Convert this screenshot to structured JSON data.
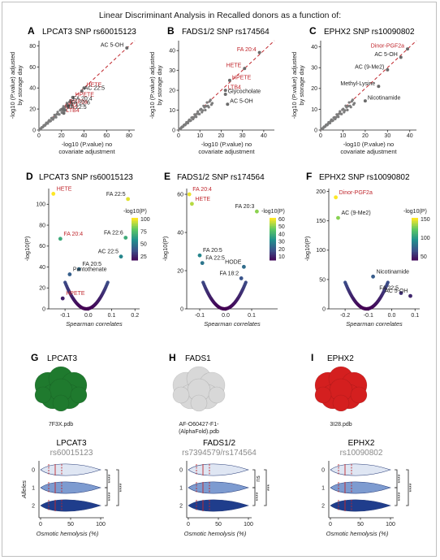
{
  "title": "Linear Discriminant Analysis in Recalled donors as a function of:",
  "colors": {
    "red": "#c0272d",
    "dark": "#222222",
    "diag": "#c0272d"
  },
  "top_panels": [
    {
      "letter": "A",
      "title": "LPCAT3 SNP rs60015123",
      "xlabel": [
        "-log10 (P.value) no",
        "covariate adjustment"
      ],
      "ylabel": [
        "-log10 (P.value) adjusted",
        "by storage day"
      ],
      "ticks": [
        "0",
        "20",
        "40",
        "60",
        "80"
      ],
      "xlim": [
        0,
        85
      ],
      "points": [
        {
          "label": "AC 5-OH",
          "x": 78,
          "y": 78,
          "c": "dark"
        },
        {
          "label": "HETE",
          "x": 40,
          "y": 40,
          "c": "red"
        },
        {
          "label": "AC 22:5",
          "x": 38,
          "y": 37,
          "c": "dark"
        },
        {
          "label": "HPETE",
          "x": 30,
          "y": 31,
          "c": "red"
        },
        {
          "label": "FA 20:4",
          "x": 28,
          "y": 27,
          "c": "dark"
        },
        {
          "label": "PGF2a",
          "x": 25,
          "y": 24,
          "c": "red"
        },
        {
          "label": "FA 22:6",
          "x": 26,
          "y": 23,
          "c": "dark"
        },
        {
          "label": "LTA4",
          "x": 21,
          "y": 20,
          "c": "red"
        },
        {
          "label": "FA 22:5",
          "x": 23,
          "y": 19,
          "c": "dark"
        },
        {
          "label": "LTB4",
          "x": 22,
          "y": 16,
          "c": "red"
        }
      ]
    },
    {
      "letter": "B",
      "title": "FADS1/2 SNP rs174564",
      "xlabel": [
        "-log10 (P.value) no",
        "covariate adjustment"
      ],
      "ylabel": [
        "-log10 (P.value) adjusted",
        "by storage day"
      ],
      "ticks": [
        "0",
        "10",
        "20",
        "30",
        "40"
      ],
      "xlim": [
        0,
        45
      ],
      "points": [
        {
          "label": "FA 20:4",
          "x": 38,
          "y": 39,
          "c": "red"
        },
        {
          "label": "HETE",
          "x": 31,
          "y": 31,
          "c": "red"
        },
        {
          "label": "HPETE",
          "x": 24,
          "y": 25,
          "c": "red"
        },
        {
          "label": "LTB4",
          "x": 22,
          "y": 20,
          "c": "red"
        },
        {
          "label": "Glycocholate",
          "x": 22,
          "y": 18,
          "c": "dark"
        },
        {
          "label": "AC 5-OH",
          "x": 23,
          "y": 13,
          "c": "dark"
        }
      ]
    },
    {
      "letter": "C",
      "title": "EPHX2 SNP rs10090802",
      "xlabel": [
        "-log10 (P.value) no",
        "covariate adjustment"
      ],
      "ylabel": [
        "-log10 (P.value) adjusted",
        "by storage day"
      ],
      "ticks": [
        "0",
        "10",
        "20",
        "30",
        "40"
      ],
      "xlim": [
        0,
        43
      ],
      "points": [
        {
          "label": "Dinor-PGF2a",
          "x": 39,
          "y": 39,
          "c": "red"
        },
        {
          "label": "AC 5-OH",
          "x": 36,
          "y": 35,
          "c": "dark"
        },
        {
          "label": "AC (9-Me2)",
          "x": 30,
          "y": 29,
          "c": "dark"
        },
        {
          "label": "Methyl-Lysine",
          "x": 26,
          "y": 21,
          "c": "dark"
        },
        {
          "label": "Nicotinamide",
          "x": 20,
          "y": 14,
          "c": "dark"
        }
      ]
    }
  ],
  "volcano_panels": [
    {
      "letter": "D",
      "title": "LPCAT3 SNP rs60015123",
      "xlabel": "Spearman correlates",
      "ylabel": "-log10(P)",
      "legend_title": "-log10(P)",
      "legend_ticks": [
        "100",
        "75",
        "50",
        "25"
      ],
      "cmax": 110,
      "xticks": [
        "-0.1",
        "0.0",
        "0.1",
        "0.2"
      ],
      "yticks": [
        "0",
        "20",
        "40",
        "60",
        "80",
        "100"
      ],
      "xlim": [
        -0.17,
        0.22
      ],
      "ylim": [
        0,
        115
      ],
      "points": [
        {
          "label": "HETE",
          "x": -0.15,
          "y": 110,
          "c": "red"
        },
        {
          "label": "FA 22:5",
          "x": 0.17,
          "y": 105,
          "c": "dark"
        },
        {
          "label": "FA 20:4",
          "x": -0.12,
          "y": 67,
          "c": "red"
        },
        {
          "label": "FA 22:6",
          "x": 0.16,
          "y": 68,
          "c": "dark"
        },
        {
          "label": "AC 22:5",
          "x": 0.14,
          "y": 50,
          "c": "dark"
        },
        {
          "label": "FA 20:5",
          "x": -0.04,
          "y": 38,
          "c": "dark"
        },
        {
          "label": "Pantothenate",
          "x": -0.08,
          "y": 33,
          "c": "dark"
        },
        {
          "label": "HPETE",
          "x": -0.11,
          "y": 10,
          "c": "red"
        }
      ]
    },
    {
      "letter": "E",
      "title": "FADS1/2 SNP rs174564",
      "xlabel": "Spearman correlates",
      "ylabel": "-log10(P)",
      "legend_title": "-log10(P)",
      "legend_ticks": [
        "60",
        "50",
        "40",
        "30",
        "20",
        "10"
      ],
      "cmax": 62,
      "xticks": [
        "-0.1",
        "0.0",
        "0.1"
      ],
      "yticks": [
        "0",
        "20",
        "40",
        "60"
      ],
      "xlim": [
        -0.15,
        0.2
      ],
      "ylim": [
        0,
        63
      ],
      "points": [
        {
          "label": "FA 20:4",
          "x": -0.14,
          "y": 60,
          "c": "red"
        },
        {
          "label": "HETE",
          "x": -0.13,
          "y": 55,
          "c": "red"
        },
        {
          "label": "FA 20:3",
          "x": 0.12,
          "y": 51,
          "c": "dark"
        },
        {
          "label": "FA 20:5",
          "x": -0.1,
          "y": 28,
          "c": "dark"
        },
        {
          "label": "FA 22:5",
          "x": -0.09,
          "y": 24,
          "c": "dark"
        },
        {
          "label": "HODE",
          "x": 0.07,
          "y": 22,
          "c": "dark"
        },
        {
          "label": "FA 18:2",
          "x": 0.06,
          "y": 16,
          "c": "dark"
        }
      ]
    },
    {
      "letter": "F",
      "title": "EPHX2 SNP rs10090802",
      "xlabel": "Spearman correlates",
      "ylabel": "-log10(P)",
      "legend_title": "-log10(P)",
      "legend_ticks": [
        "150",
        "100",
        "50"
      ],
      "cmax": 190,
      "xticks": [
        "-0.2",
        "-0.1",
        "0.0",
        "0.1"
      ],
      "yticks": [
        "0",
        "50",
        "100",
        "150",
        "200"
      ],
      "xlim": [
        -0.27,
        0.12
      ],
      "ylim": [
        0,
        205
      ],
      "points": [
        {
          "label": "Dinor-PGF2a",
          "x": -0.24,
          "y": 190,
          "c": "red"
        },
        {
          "label": "AC (9-Me2)",
          "x": -0.23,
          "y": 155,
          "c": "dark"
        },
        {
          "label": "Nicotinamide",
          "x": -0.08,
          "y": 55,
          "c": "dark"
        },
        {
          "label": "FA 22:5",
          "x": 0.04,
          "y": 27,
          "c": "dark"
        },
        {
          "label": "AC 5-OH",
          "x": 0.08,
          "y": 22,
          "c": "dark"
        }
      ]
    }
  ],
  "structures": [
    {
      "letter": "G",
      "name": "LPCAT3",
      "file": "7F3X.pdb",
      "color": "#1f7a2e"
    },
    {
      "letter": "H",
      "name": "FADS1",
      "file": "AF-O60427-F1-",
      "file2": "(AlphaFold).pdb",
      "color": "#d8d8d8"
    },
    {
      "letter": "I",
      "name": "EPHX2",
      "file": "3I28.pdb",
      "color": "#d41f1f"
    }
  ],
  "violins": [
    {
      "gene": "LPCAT3",
      "snp": "rs60015123",
      "ylabel": "Alleles",
      "xlabel": "Osmotic hemolysis (%)",
      "xticks": [
        "0",
        "50",
        "100"
      ],
      "alleles": [
        "0",
        "1",
        "2"
      ],
      "brackets": [
        {
          "from": 0,
          "to": 1,
          "text": "****"
        },
        {
          "from": 1,
          "to": 2,
          "text": "****"
        },
        {
          "from": 0,
          "to": 2,
          "text": "****"
        }
      ]
    },
    {
      "gene": "FADS1/2",
      "snp": "rs7394579/rs174564",
      "ylabel": "",
      "xlabel": "Osmotic hemolysis (%)",
      "xticks": [
        "0",
        "50",
        "100"
      ],
      "alleles": [
        "0",
        "1",
        "2"
      ],
      "brackets": [
        {
          "from": 0,
          "to": 1,
          "text": "ns"
        },
        {
          "from": 1,
          "to": 2,
          "text": "****"
        },
        {
          "from": 0,
          "to": 2,
          "text": "***"
        }
      ]
    },
    {
      "gene": "EPHX2",
      "snp": "rs10090802",
      "ylabel": "",
      "xlabel": "Osmotic hemolysis (%)",
      "xticks": [
        "0",
        "50",
        "100"
      ],
      "alleles": [
        "0",
        "1",
        "2"
      ],
      "brackets": [
        {
          "from": 0,
          "to": 1,
          "text": "****"
        },
        {
          "from": 1,
          "to": 2,
          "text": "****"
        },
        {
          "from": 0,
          "to": 2,
          "text": "****"
        }
      ]
    }
  ]
}
